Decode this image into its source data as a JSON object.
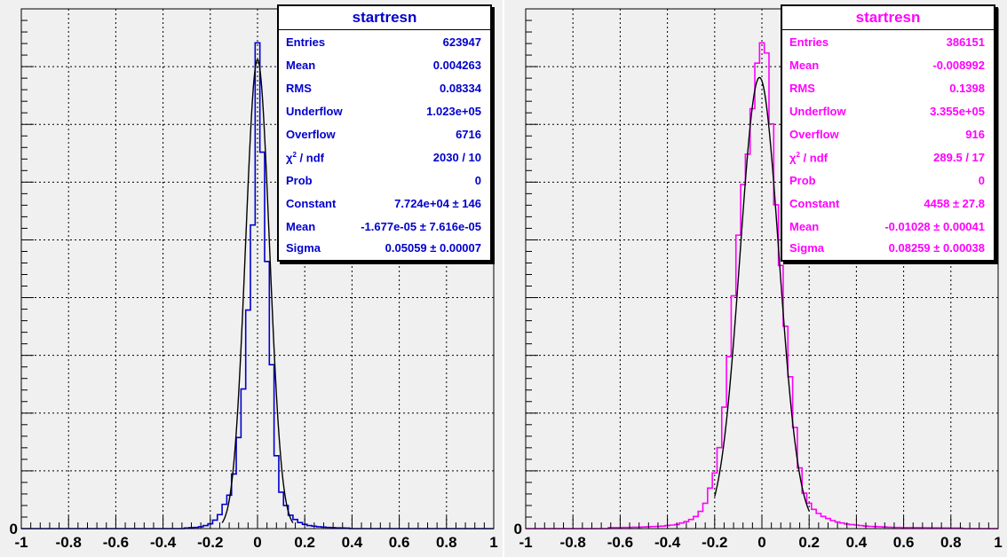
{
  "chart_data": [
    {
      "type": "histogram",
      "title": "startresn",
      "xlim": [
        -1,
        1
      ],
      "x_ticks": [
        "-1",
        "-0.8",
        "-0.6",
        "-0.4",
        "-0.2",
        "0",
        "0.2",
        "0.4",
        "0.6",
        "0.8",
        "1"
      ],
      "y_ticks": [
        "0"
      ],
      "grid": true,
      "line_color": "#0000cc",
      "fit_color": "#000000",
      "bin_width": 0.02,
      "bins_x": [
        -0.3,
        -0.28,
        -0.26,
        -0.24,
        -0.22,
        -0.2,
        -0.18,
        -0.16,
        -0.14,
        -0.12,
        -0.1,
        -0.08,
        -0.06,
        -0.04,
        -0.02,
        0.0,
        0.02,
        0.04,
        0.06,
        0.08,
        0.1,
        0.12,
        0.14,
        0.16,
        0.18,
        0.2,
        0.22,
        0.24,
        0.26,
        0.28,
        0.3,
        0.32,
        0.34,
        0.36,
        0.38
      ],
      "bins_y": [
        100,
        150,
        200,
        300,
        500,
        800,
        1400,
        2300,
        4000,
        5500,
        9000,
        15000,
        23000,
        36000,
        50000,
        80000,
        62000,
        44000,
        27000,
        12000,
        6000,
        3800,
        2200,
        1500,
        1000,
        700,
        500,
        400,
        300,
        250,
        200,
        160,
        120,
        100,
        80
      ],
      "fit_curve": {
        "constant": 77240,
        "mean": -1.677e-05,
        "sigma": 0.05059,
        "range": [
          -0.15,
          0.15
        ]
      },
      "stats": {
        "title": "startresn",
        "rows": [
          {
            "label": "Entries",
            "value": "623947"
          },
          {
            "label": "Mean",
            "value": "0.004263"
          },
          {
            "label": "RMS",
            "value": "0.08334"
          },
          {
            "label": "Underflow",
            "value": "1.023e+05"
          },
          {
            "label": "Overflow",
            "value": "6716"
          },
          {
            "label_main": "χ",
            "label_sup": "2",
            "label_rest": " / ndf",
            "value": "2030 / 10"
          },
          {
            "label": "Prob",
            "value": "0"
          },
          {
            "label": "Constant",
            "value": "7.724e+04 ± 146"
          },
          {
            "label": "Mean",
            "value": "-1.677e-05 ± 7.616e-05"
          },
          {
            "label": "Sigma",
            "value": "0.05059 ± 0.00007"
          }
        ]
      }
    },
    {
      "type": "histogram",
      "title": "startresn",
      "xlim": [
        -1,
        1
      ],
      "x_ticks": [
        "-1",
        "-0.8",
        "-0.6",
        "-0.4",
        "-0.2",
        "0",
        "0.2",
        "0.4",
        "0.6",
        "0.8",
        "1"
      ],
      "y_ticks": [
        "0"
      ],
      "grid": true,
      "line_color": "#ff00ff",
      "fit_color": "#000000",
      "bin_width": 0.02,
      "bins_x": [
        -0.64,
        -0.62,
        -0.6,
        -0.58,
        -0.56,
        -0.54,
        -0.52,
        -0.5,
        -0.48,
        -0.46,
        -0.44,
        -0.42,
        -0.4,
        -0.38,
        -0.36,
        -0.34,
        -0.32,
        -0.3,
        -0.28,
        -0.26,
        -0.24,
        -0.22,
        -0.2,
        -0.18,
        -0.16,
        -0.14,
        -0.12,
        -0.1,
        -0.08,
        -0.06,
        -0.04,
        -0.02,
        0.0,
        0.02,
        0.04,
        0.06,
        0.08,
        0.1,
        0.12,
        0.14,
        0.16,
        0.18,
        0.2,
        0.22,
        0.24,
        0.26,
        0.28,
        0.3,
        0.32,
        0.34,
        0.36,
        0.38,
        0.4,
        0.42,
        0.44,
        0.46,
        0.48,
        0.5,
        0.52,
        0.54,
        0.56,
        0.58,
        0.6,
        0.62,
        0.64,
        0.66,
        0.68,
        0.7,
        0.72,
        0.74,
        0.76,
        0.78,
        0.8,
        0.82,
        0.84
      ],
      "bins_y": [
        10,
        10,
        10,
        12,
        12,
        14,
        14,
        16,
        18,
        20,
        22,
        25,
        30,
        35,
        40,
        55,
        70,
        90,
        120,
        170,
        250,
        400,
        550,
        800,
        1200,
        1700,
        2300,
        2900,
        3400,
        3700,
        4150,
        4600,
        4800,
        4700,
        4000,
        3200,
        2600,
        2000,
        1500,
        1000,
        600,
        350,
        250,
        190,
        150,
        120,
        100,
        80,
        65,
        55,
        45,
        40,
        35,
        30,
        25,
        22,
        20,
        18,
        16,
        14,
        12,
        12,
        10,
        10,
        9,
        9,
        8,
        8,
        7,
        7,
        6,
        6,
        5,
        5,
        5
      ],
      "fit_curve": {
        "constant": 4458,
        "mean": -0.01028,
        "sigma": 0.08259,
        "range": [
          -0.2,
          0.2
        ]
      },
      "stats": {
        "title": "startresn",
        "rows": [
          {
            "label": "Entries",
            "value": "386151"
          },
          {
            "label": "Mean",
            "value": "-0.008992"
          },
          {
            "label": "RMS",
            "value": "0.1398"
          },
          {
            "label": "Underflow",
            "value": "3.355e+05"
          },
          {
            "label": "Overflow",
            "value": "916"
          },
          {
            "label_main": "χ",
            "label_sup": "2",
            "label_rest": " / ndf",
            "value": "289.5 / 17"
          },
          {
            "label": "Prob",
            "value": "0"
          },
          {
            "label": "Constant",
            "value": "4458 ± 27.8"
          },
          {
            "label": "Mean",
            "value": "-0.01028 ± 0.00041"
          },
          {
            "label": "Sigma",
            "value": "0.08259 ± 0.00038"
          }
        ]
      }
    }
  ]
}
